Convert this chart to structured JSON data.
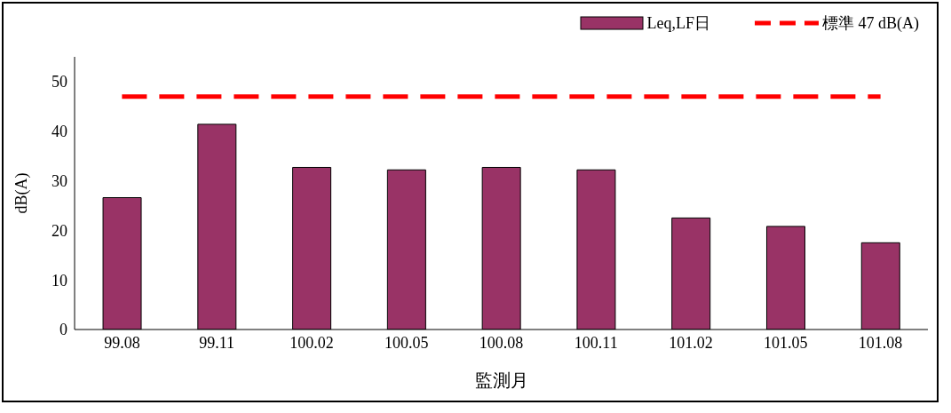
{
  "chart_data": {
    "type": "bar",
    "xlabel": "監測月",
    "ylabel": "dB(A)",
    "categories": [
      "99.08",
      "99.11",
      "100.02",
      "100.05",
      "100.08",
      "100.11",
      "101.02",
      "101.05",
      "101.08"
    ],
    "series": [
      {
        "name": "Leq,LF日",
        "color": "#993366",
        "values": [
          26.6,
          41.4,
          32.7,
          32.2,
          32.7,
          32.2,
          22.5,
          20.8,
          17.5
        ]
      },
      {
        "name": "標準 47 dB(A)",
        "type": "line",
        "color": "#ff0000",
        "line_style": "dashed",
        "marker": "none",
        "values": [
          47,
          47,
          47,
          47,
          47,
          47,
          47,
          47,
          47
        ]
      }
    ],
    "ylim": [
      0,
      55
    ],
    "yticks": [
      0,
      10,
      20,
      30,
      40,
      50
    ],
    "grid": false,
    "legend": "top right"
  }
}
